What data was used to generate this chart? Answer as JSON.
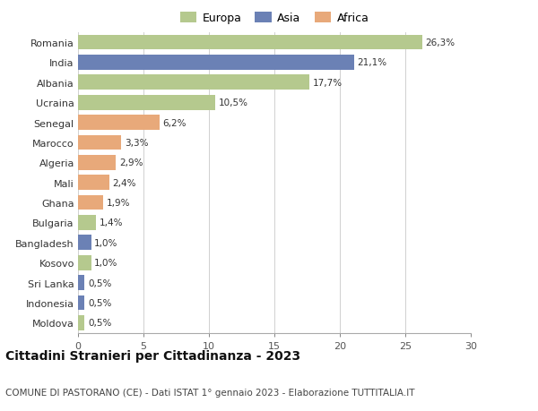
{
  "countries": [
    "Romania",
    "India",
    "Albania",
    "Ucraina",
    "Senegal",
    "Marocco",
    "Algeria",
    "Mali",
    "Ghana",
    "Bulgaria",
    "Bangladesh",
    "Kosovo",
    "Sri Lanka",
    "Indonesia",
    "Moldova"
  ],
  "values": [
    26.3,
    21.1,
    17.7,
    10.5,
    6.2,
    3.3,
    2.9,
    2.4,
    1.9,
    1.4,
    1.0,
    1.0,
    0.5,
    0.5,
    0.5
  ],
  "labels": [
    "26,3%",
    "21,1%",
    "17,7%",
    "10,5%",
    "6,2%",
    "3,3%",
    "2,9%",
    "2,4%",
    "1,9%",
    "1,4%",
    "1,0%",
    "1,0%",
    "0,5%",
    "0,5%",
    "0,5%"
  ],
  "continents": [
    "Europa",
    "Asia",
    "Europa",
    "Europa",
    "Africa",
    "Africa",
    "Africa",
    "Africa",
    "Africa",
    "Europa",
    "Asia",
    "Europa",
    "Asia",
    "Asia",
    "Europa"
  ],
  "colors": {
    "Europa": "#b5c98e",
    "Asia": "#6b81b5",
    "Africa": "#e8a97a"
  },
  "xlim": [
    0,
    30
  ],
  "xticks": [
    0,
    5,
    10,
    15,
    20,
    25,
    30
  ],
  "title": "Cittadini Stranieri per Cittadinanza - 2023",
  "subtitle": "COMUNE DI PASTORANO (CE) - Dati ISTAT 1° gennaio 2023 - Elaborazione TUTTITALIA.IT",
  "title_fontsize": 10,
  "subtitle_fontsize": 7.5,
  "background_color": "#ffffff",
  "grid_color": "#d0d0d0",
  "bar_height": 0.75
}
